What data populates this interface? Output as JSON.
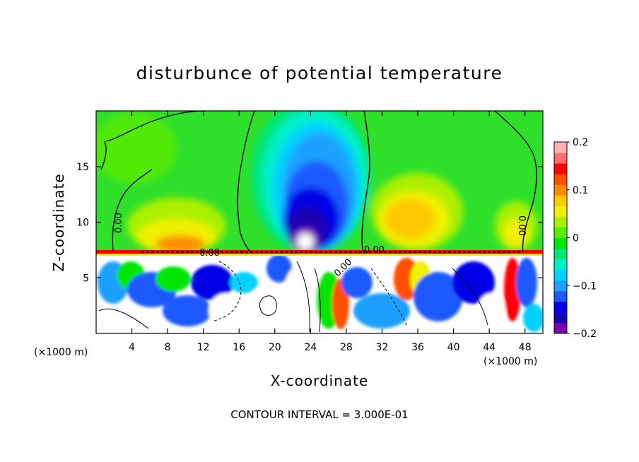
{
  "chart_data": {
    "type": "heatmap",
    "title": "disturbunce of potential temperature",
    "xlabel": "X-coordinate",
    "ylabel": "Z-coordinate",
    "x_unit_label": "(×1000 m)",
    "x_unit_label_right": "(×1000 m)",
    "xlim": [
      0,
      50
    ],
    "ylim": [
      0,
      20
    ],
    "xticks": [
      4,
      8,
      12,
      16,
      20,
      24,
      28,
      32,
      36,
      40,
      44,
      48
    ],
    "yticks": [
      5,
      10,
      15
    ],
    "colorbar": {
      "min": -0.2,
      "max": 0.2,
      "tick_values": [
        0.2,
        0.1,
        0,
        -0.1,
        -0.2
      ],
      "tick_labels": [
        "0.2",
        "0.1",
        "0",
        "−0.1",
        "−0.2"
      ],
      "colors": [
        "#7a00b0",
        "#1a00b4",
        "#0000e6",
        "#1e5aff",
        "#1ea0ff",
        "#00d2ff",
        "#00f0c8",
        "#00e678",
        "#00e600",
        "#5aeb00",
        "#aaf000",
        "#f0f000",
        "#ffc800",
        "#ff8c00",
        "#ff5000",
        "#ff0000",
        "#ff6e6e",
        "#ffb4b4"
      ]
    },
    "contour_interval_text": "CONTOUR INTERVAL = 3.000E-01",
    "contour_labels": [
      "0.00",
      "0.00",
      "0.00",
      "0.00",
      "0.00"
    ],
    "features": [
      {
        "name": "cold anomaly aloft",
        "x_center": 24.5,
        "z_center": 13,
        "value_min": -0.17
      },
      {
        "name": "warm anomaly left",
        "x_center": 10,
        "z_center": 9,
        "value_max": 0.1
      },
      {
        "name": "warm anomaly right",
        "x_center": 35,
        "z_center": 10,
        "value_max": 0.09
      },
      {
        "name": "boundary layer top",
        "z": 7.2
      }
    ],
    "grid": false
  }
}
